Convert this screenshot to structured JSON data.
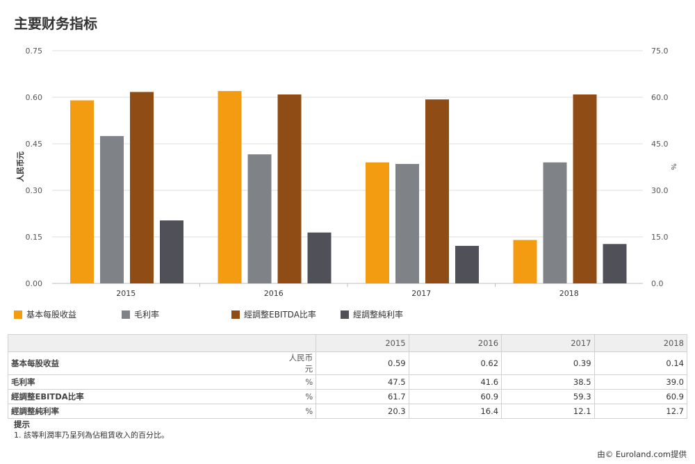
{
  "page": {
    "title": "主要财务指标"
  },
  "colors": {
    "eps": "#f39c12",
    "gross_margin": "#7f8287",
    "ebitda_margin": "#8f4c14",
    "net_margin": "#505158"
  },
  "chart_data": {
    "type": "bar",
    "categories": [
      "2015",
      "2016",
      "2017",
      "2018"
    ],
    "series": [
      {
        "name": "基本每股收益",
        "axis": "left",
        "values": [
          0.59,
          0.62,
          0.39,
          0.14
        ]
      },
      {
        "name": "毛利率",
        "axis": "right",
        "values": [
          47.5,
          41.6,
          38.5,
          39.0
        ]
      },
      {
        "name": "經調整EBITDA比率",
        "axis": "right",
        "values": [
          61.7,
          60.9,
          59.3,
          60.9
        ]
      },
      {
        "name": "經調整純利率",
        "axis": "right",
        "values": [
          20.3,
          16.4,
          12.1,
          12.7
        ]
      }
    ],
    "ylabel": "人民币元",
    "y2label": "%",
    "ylim": [
      0,
      0.75
    ],
    "y2lim": [
      0,
      75
    ],
    "yticks": [
      "0.00",
      "0.15",
      "0.30",
      "0.45",
      "0.60",
      "0.75"
    ],
    "y2ticks": [
      "0.0",
      "15.0",
      "30.0",
      "45.0",
      "60.0",
      "75.0"
    ],
    "grid": true,
    "legend": "bottom-left"
  },
  "table": {
    "headers": [
      "2015",
      "2016",
      "2017",
      "2018"
    ],
    "rows": [
      {
        "label": "基本每股收益",
        "unit": "人民币元",
        "values": [
          "0.59",
          "0.62",
          "0.39",
          "0.14"
        ]
      },
      {
        "label": "毛利率",
        "unit": "%",
        "values": [
          "47.5",
          "41.6",
          "38.5",
          "39.0"
        ]
      },
      {
        "label": "經調整EBITDA比率",
        "unit": "%",
        "values": [
          "61.7",
          "60.9",
          "59.3",
          "60.9"
        ]
      },
      {
        "label": "經調整純利率",
        "unit": "%",
        "values": [
          "20.3",
          "16.4",
          "12.1",
          "12.7"
        ]
      }
    ]
  },
  "notes": {
    "title": "提示",
    "lines": [
      "1. 該等利潤率乃呈列為佔租賃收入的百分比。"
    ]
  },
  "footer": {
    "provider": "由© Euroland.com提供"
  }
}
